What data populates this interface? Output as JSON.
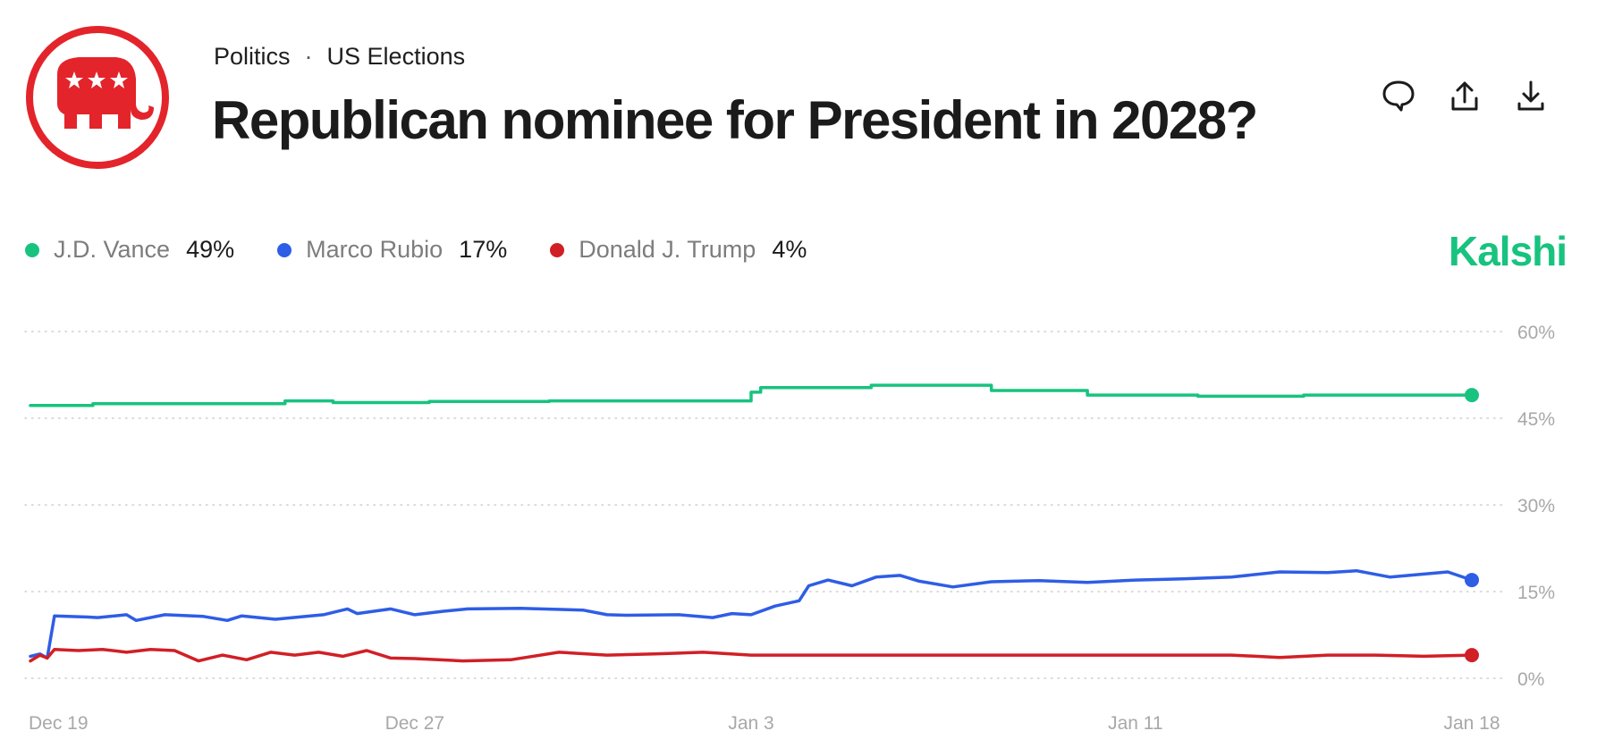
{
  "header": {
    "breadcrumb": [
      "Politics",
      "US Elections"
    ],
    "separator": "·",
    "title": "Republican nominee for President in 2028?"
  },
  "logo": {
    "icon": "republican-elephant-icon",
    "color": "#e3242b"
  },
  "actions": [
    {
      "name": "comment-icon"
    },
    {
      "name": "share-icon"
    },
    {
      "name": "download-icon"
    }
  ],
  "brand": {
    "text": "Kalshi",
    "color": "#17c37f"
  },
  "chart_data": {
    "type": "line",
    "title": "Republican nominee for President in 2028?",
    "xlabel": "",
    "ylabel": "",
    "ylim": [
      0,
      60
    ],
    "yticks": [
      0,
      15,
      30,
      45,
      60
    ],
    "ytick_labels": [
      "0%",
      "15%",
      "30%",
      "45%",
      "60%"
    ],
    "xlim": [
      0,
      30
    ],
    "xticks": [
      0,
      8,
      15,
      23,
      30
    ],
    "xtick_labels": [
      "Dec 19",
      "Dec 27",
      "Jan 3",
      "Jan 11",
      "Jan 18"
    ],
    "grid": true,
    "series": [
      {
        "name": "J.D. Vance",
        "label_value": "49%",
        "color": "#17c37f",
        "x": [
          0,
          1.3,
          1.3,
          5.3,
          5.3,
          6.3,
          6.3,
          8.3,
          8.3,
          10.8,
          10.8,
          15.0,
          15.0,
          15.2,
          15.2,
          17.5,
          17.5,
          20.0,
          20.0,
          22.0,
          22.0,
          24.3,
          24.3,
          26.5,
          26.5,
          30.0
        ],
        "values": [
          47.2,
          47.2,
          47.5,
          47.5,
          48.0,
          48.0,
          47.7,
          47.7,
          47.9,
          47.9,
          48.0,
          48.0,
          49.5,
          49.5,
          50.3,
          50.3,
          50.7,
          50.7,
          49.8,
          49.8,
          49.0,
          49.0,
          48.8,
          48.8,
          49.0,
          49.0
        ]
      },
      {
        "name": "Marco Rubio",
        "label_value": "17%",
        "color": "#2e5de6",
        "x": [
          0,
          0.2,
          0.35,
          0.5,
          1.2,
          1.4,
          2.0,
          2.2,
          2.8,
          3.6,
          4.1,
          4.4,
          5.1,
          6.1,
          6.6,
          6.8,
          7.5,
          8.0,
          8.6,
          9.1,
          10.2,
          11.5,
          12.0,
          12.4,
          13.5,
          14.2,
          14.6,
          15.0,
          15.5,
          16.0,
          16.2,
          16.6,
          17.1,
          17.6,
          18.1,
          18.5,
          19.2,
          20.0,
          21.0,
          22.0,
          23.0,
          24.0,
          25.0,
          26.0,
          27.0,
          27.6,
          28.3,
          29.5,
          30.0
        ],
        "values": [
          3.8,
          4.2,
          3.5,
          10.8,
          10.6,
          10.5,
          11.0,
          10.0,
          11.0,
          10.7,
          10.0,
          10.8,
          10.2,
          11.0,
          12.0,
          11.2,
          12.0,
          11.0,
          11.6,
          12.0,
          12.1,
          11.8,
          11.0,
          10.9,
          11.0,
          10.5,
          11.2,
          11.0,
          12.5,
          13.4,
          16.0,
          17.0,
          16.0,
          17.5,
          17.8,
          16.8,
          15.8,
          16.7,
          16.9,
          16.6,
          17.0,
          17.2,
          17.5,
          18.4,
          18.3,
          18.6,
          17.5,
          18.4,
          17.0
        ]
      },
      {
        "name": "Donald J. Trump",
        "label_value": "4%",
        "color": "#d11f26",
        "x": [
          0,
          0.2,
          0.35,
          0.5,
          1.0,
          1.5,
          2.0,
          2.5,
          3.0,
          3.5,
          4.0,
          4.5,
          5.0,
          5.5,
          6.0,
          6.5,
          7.0,
          7.5,
          8.0,
          9.0,
          10.0,
          11.0,
          12.0,
          13.0,
          14.0,
          15.0,
          16.0,
          17.0,
          18.0,
          19.0,
          20.0,
          21.0,
          22.0,
          23.0,
          24.0,
          25.0,
          26.0,
          27.0,
          28.0,
          29.0,
          30.0
        ],
        "values": [
          3.0,
          4.0,
          3.5,
          5.0,
          4.8,
          5.0,
          4.5,
          5.0,
          4.8,
          3.0,
          4.0,
          3.2,
          4.5,
          4.0,
          4.5,
          3.8,
          4.8,
          3.5,
          3.4,
          3.0,
          3.2,
          4.5,
          4.0,
          4.2,
          4.5,
          4.0,
          4.0,
          4.0,
          4.0,
          4.0,
          4.0,
          4.0,
          4.0,
          4.0,
          4.0,
          4.0,
          3.6,
          4.0,
          4.0,
          3.8,
          4.0
        ]
      }
    ]
  }
}
